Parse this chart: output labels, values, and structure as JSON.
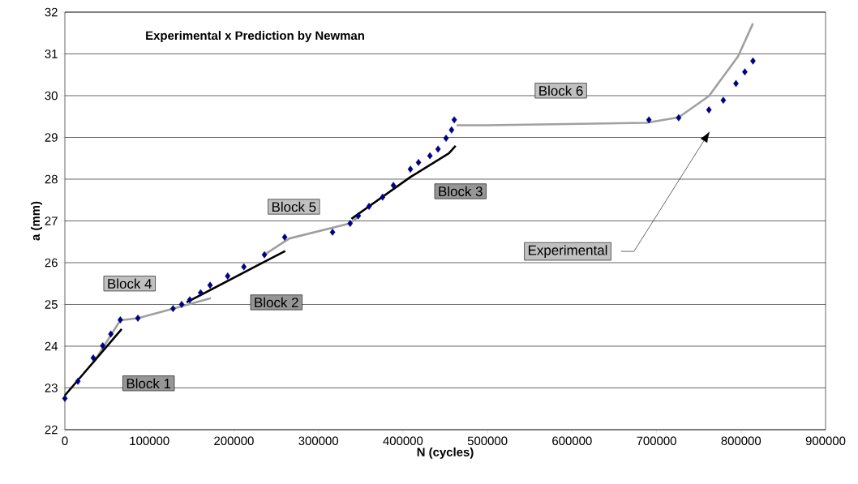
{
  "chart_data": {
    "type": "scatter",
    "title": "Experimental x Prediction by Newman",
    "xlabel": "N (cycles)",
    "ylabel": "a (mm)",
    "xlim": [
      0,
      900000
    ],
    "ylim": [
      22,
      32
    ],
    "xticks": [
      0,
      100000,
      200000,
      300000,
      400000,
      500000,
      600000,
      700000,
      800000,
      900000
    ],
    "yticks": [
      22,
      23,
      24,
      25,
      26,
      27,
      28,
      29,
      30,
      31,
      32
    ],
    "grid": "y",
    "series": [
      {
        "type": "line",
        "color": "#a0a0a0",
        "x": [
          33600,
          65600,
          86400,
          128000,
          172700,
          200000,
          236100,
          265600,
          337500,
          350000,
          400000,
          463500,
          499000,
          687800,
          726200,
          762000,
          796500,
          814100
        ],
        "values": [
          23.6,
          24.62,
          24.67,
          24.9,
          25.15,
          null,
          26.19,
          26.58,
          26.94,
          27.15,
          null,
          29.29,
          29.29,
          29.35,
          29.48,
          29.99,
          30.94,
          31.73
        ]
      },
      {
        "type": "line",
        "color": "#000000",
        "x": [
          0,
          67200,
          100000,
          144000,
          236100,
          260700,
          300000,
          339100,
          409500,
          454300,
          462300
        ],
        "values": [
          22.82,
          24.41,
          null,
          25.05,
          26.02,
          26.28,
          null,
          27.05,
          28.06,
          28.62,
          28.8
        ]
      },
      {
        "marker": "diamond",
        "color": "#000080",
        "x": [
          0,
          15400,
          33600,
          44800,
          54400,
          65600,
          86400,
          128000,
          138200,
          147800,
          160600,
          171800,
          192600,
          211800,
          236100,
          260100,
          316700,
          337500,
          347100,
          359900,
          375900,
          388700,
          408800,
          418400,
          431900,
          441500,
          451000,
          457500,
          460700,
          691000,
          726200,
          762000,
          779000,
          794000,
          804500,
          814100
        ],
        "values": [
          22.75,
          23.16,
          23.72,
          24.01,
          24.29,
          24.63,
          24.67,
          24.9,
          25.0,
          25.11,
          25.28,
          25.46,
          25.68,
          25.9,
          26.19,
          26.61,
          26.73,
          26.94,
          27.12,
          27.35,
          27.57,
          27.85,
          28.24,
          28.4,
          28.56,
          28.72,
          28.98,
          29.18,
          29.42,
          29.42,
          29.47,
          29.66,
          29.89,
          30.29,
          30.57,
          30.83
        ]
      }
    ],
    "annotations": [
      "Block 1",
      "Block 2",
      "Block 3",
      "Block 4",
      "Block 5",
      "Block 6",
      "Experimental"
    ]
  }
}
